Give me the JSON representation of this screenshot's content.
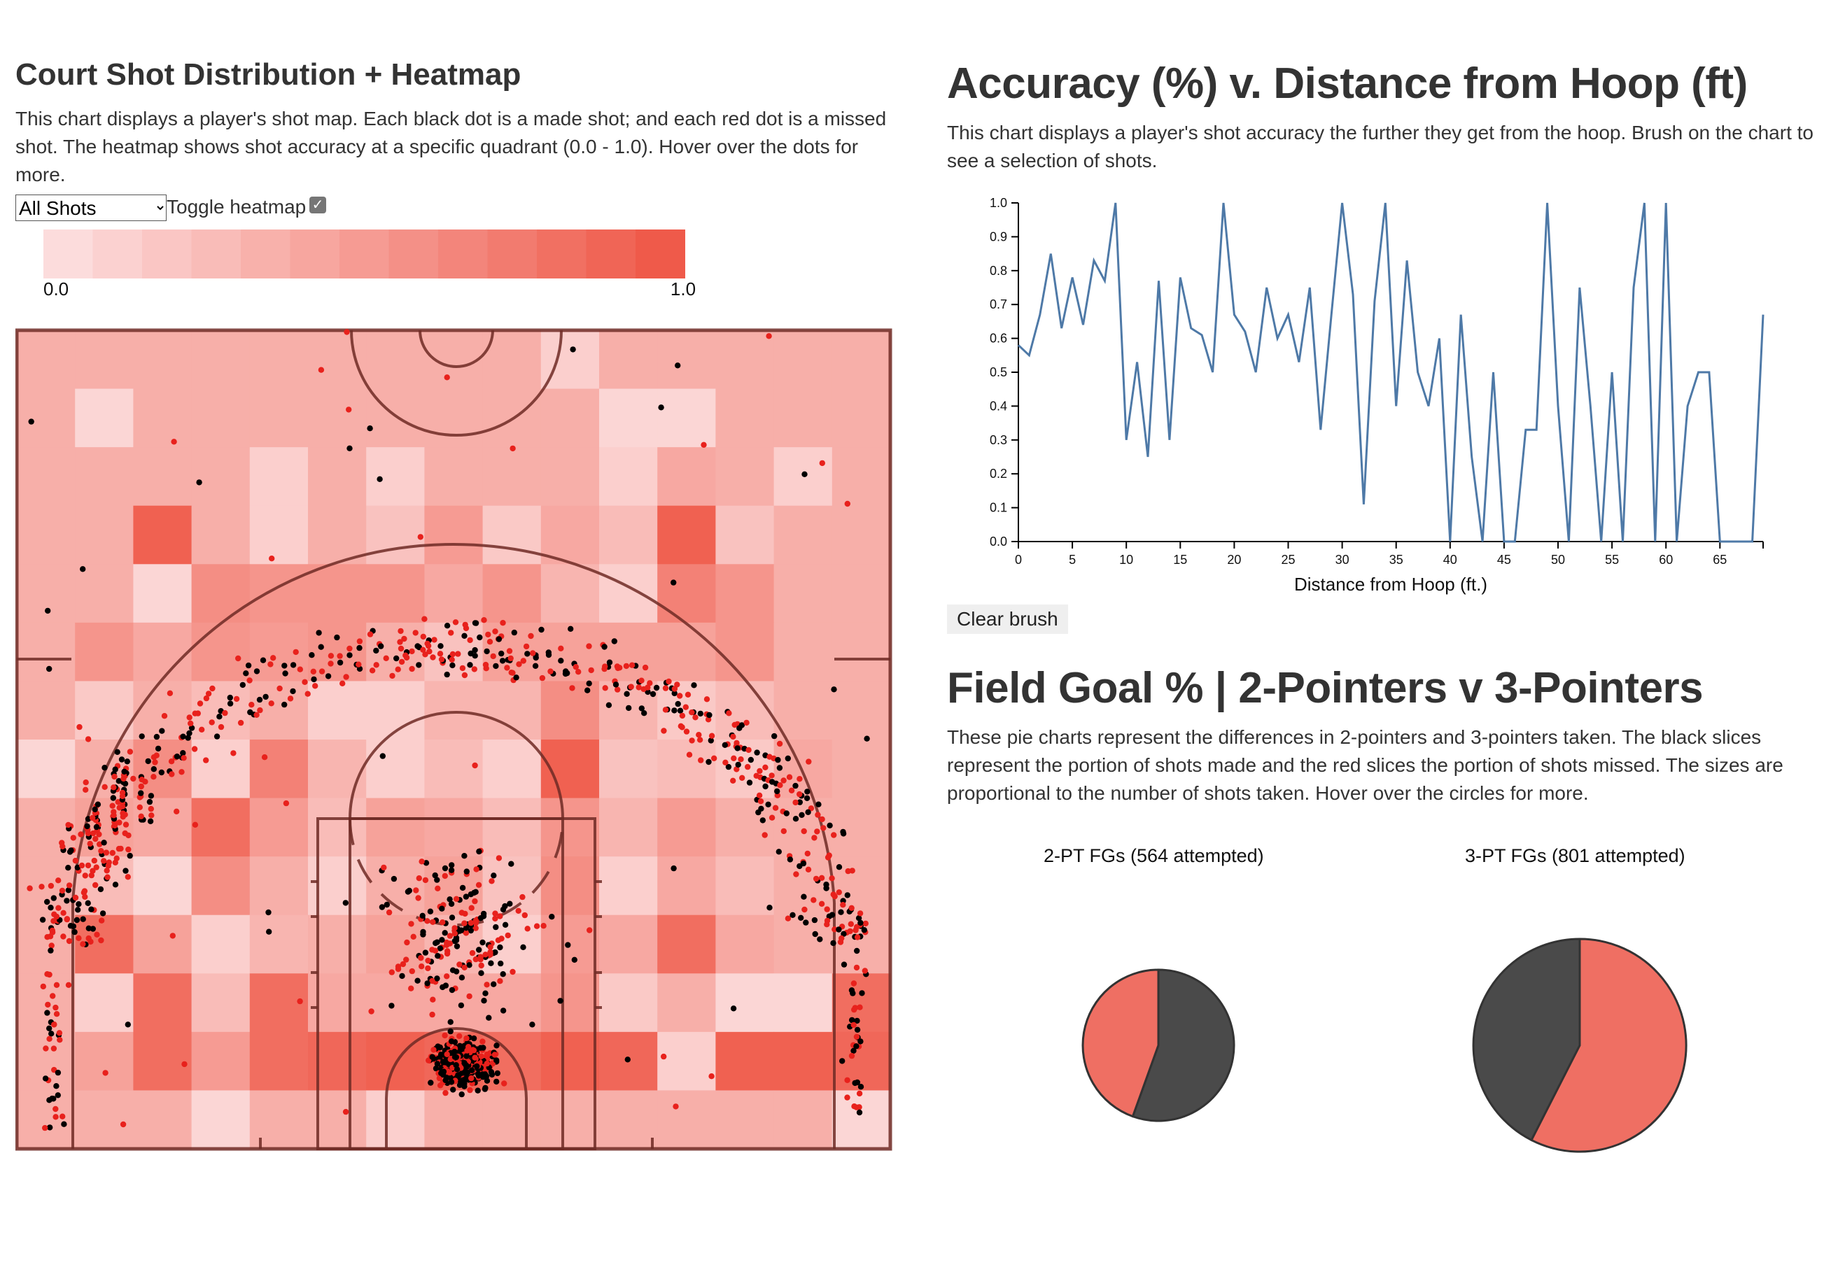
{
  "left": {
    "title": "Court Shot Distribution + Heatmap",
    "description": "This chart displays a player's shot map. Each black dot is a made shot; and each red dot is a missed shot. The heatmap shows shot accuracy at a specific quadrant (0.0 - 1.0). Hover over the dots for more.",
    "filter": {
      "selected": "All Shots",
      "options": [
        "All Shots"
      ]
    },
    "toggle_label": "Toggle heatmap",
    "toggle_checked": true,
    "legend": {
      "min_label": "0.0",
      "max_label": "1.0",
      "color_low": "#fcdcdc",
      "color_high": "#ef5a4a"
    },
    "colors": {
      "made": "#000000",
      "missed": "#e8211c",
      "court_line": "#6e2a24"
    }
  },
  "accuracy": {
    "title": "Accuracy (%) v. Distance from Hoop (ft)",
    "description": "This chart displays a player's shot accuracy the further they get from the hoop. Brush on the chart to see a selection of shots.",
    "clear_label": "Clear brush"
  },
  "fg": {
    "title": "Field Goal % | 2-Pointers v 3-Pointers",
    "description": "These pie charts represent the differences in 2-pointers and 3-pointers taken. The black slices represent the portion of shots made and the red slices the portion of shots missed. The sizes are proportional to the number of shots taken. Hover over the circles for more.",
    "two_title": "2-PT FGs (564 attempted)",
    "three_title": "3-PT FGs (801 attempted)"
  },
  "chart_data": [
    {
      "type": "line",
      "xlabel": "Distance from Hoop (ft.)",
      "ylabel": "",
      "xlim": [
        0,
        69
      ],
      "ylim": [
        0,
        1
      ],
      "x_ticks": [
        "0",
        "5",
        "10",
        "15",
        "20",
        "25",
        "30",
        "35",
        "40",
        "45",
        "50",
        "55",
        "60",
        "65"
      ],
      "y_ticks": [
        "0.0",
        "0.1",
        "0.2",
        "0.3",
        "0.4",
        "0.5",
        "0.6",
        "0.7",
        "0.8",
        "0.9",
        "1.0"
      ],
      "color": "#4e79a7",
      "x": [
        0,
        1,
        2,
        3,
        4,
        5,
        6,
        7,
        8,
        9,
        10,
        11,
        12,
        13,
        14,
        15,
        16,
        17,
        18,
        19,
        20,
        21,
        22,
        23,
        24,
        25,
        26,
        27,
        28,
        29,
        30,
        31,
        32,
        33,
        34,
        35,
        36,
        37,
        38,
        39,
        40,
        41,
        42,
        43,
        44,
        45,
        46,
        47,
        48,
        49,
        50,
        51,
        52,
        53,
        54,
        55,
        56,
        57,
        58,
        59,
        60,
        61,
        62,
        63,
        64,
        65,
        66,
        67,
        68,
        69
      ],
      "y": [
        0.58,
        0.55,
        0.67,
        0.85,
        0.63,
        0.78,
        0.64,
        0.83,
        0.77,
        1.0,
        0.3,
        0.53,
        0.25,
        0.77,
        0.3,
        0.78,
        0.63,
        0.61,
        0.5,
        1.0,
        0.67,
        0.62,
        0.5,
        0.75,
        0.6,
        0.67,
        0.53,
        0.75,
        0.33,
        0.67,
        1.0,
        0.73,
        0.11,
        0.71,
        1.0,
        0.4,
        0.83,
        0.5,
        0.4,
        0.6,
        0.0,
        0.67,
        0.25,
        0.0,
        0.5,
        0.0,
        0.0,
        0.33,
        0.33,
        1.0,
        0.4,
        0.0,
        0.75,
        0.4,
        0.0,
        0.5,
        0.0,
        0.75,
        1.0,
        0.0,
        1.0,
        0.0,
        0.4,
        0.5,
        0.5,
        0.0,
        0.0,
        0.0,
        0.0,
        0.67
      ]
    },
    {
      "type": "pie",
      "title": "2-PT FGs (564 attempted)",
      "categories": [
        "Made",
        "Missed"
      ],
      "values": [
        0.555,
        0.445
      ],
      "colors": [
        "#4a4a4a",
        "#ef6f63"
      ]
    },
    {
      "type": "pie",
      "title": "3-PT FGs (801 attempted)",
      "categories": [
        "Missed",
        "Made"
      ],
      "values": [
        0.575,
        0.425
      ],
      "colors": [
        "#ef6f63",
        "#4a4a4a"
      ]
    },
    {
      "type": "heatmap",
      "title": "",
      "rows": 14,
      "cols": 15,
      "range": [
        0,
        1
      ],
      "values": [
        [
          0.35,
          0.35,
          0.35,
          0.35,
          0.35,
          0.35,
          0.35,
          0.35,
          0.35,
          0.1,
          0.35,
          0.35,
          0.35,
          0.35,
          0.35
        ],
        [
          0.35,
          0.05,
          0.35,
          0.35,
          0.35,
          0.35,
          0.35,
          0.35,
          0.35,
          0.35,
          0.05,
          0.05,
          0.35,
          0.35,
          0.35
        ],
        [
          0.35,
          0.35,
          0.35,
          0.35,
          0.1,
          0.35,
          0.1,
          0.35,
          0.35,
          0.35,
          0.1,
          0.4,
          0.35,
          0.1,
          0.35
        ],
        [
          0.35,
          0.35,
          0.95,
          0.35,
          0.1,
          0.35,
          0.2,
          0.5,
          0.15,
          0.4,
          0.25,
          0.95,
          0.2,
          0.35,
          0.35
        ],
        [
          0.35,
          0.35,
          0.05,
          0.6,
          0.55,
          0.55,
          0.55,
          0.4,
          0.55,
          0.3,
          0.1,
          0.7,
          0.55,
          0.35,
          0.35
        ],
        [
          0.35,
          0.55,
          0.4,
          0.55,
          0.5,
          0.55,
          0.35,
          0.2,
          0.45,
          0.45,
          0.45,
          0.45,
          0.55,
          0.35,
          0.35
        ],
        [
          0.35,
          0.15,
          0.35,
          0.25,
          0.35,
          0.1,
          0.1,
          0.3,
          0.3,
          0.6,
          0.3,
          0.15,
          0.25,
          0.35,
          0.35
        ],
        [
          0.05,
          0.35,
          0.6,
          0.1,
          0.7,
          0.3,
          0.1,
          0.25,
          0.1,
          0.95,
          0.2,
          0.25,
          0.15,
          0.4,
          0.35
        ],
        [
          0.35,
          0.45,
          0.4,
          0.85,
          0.5,
          0.25,
          0.45,
          0.4,
          0.25,
          0.55,
          0.3,
          0.5,
          0.35,
          0.35,
          0.35
        ],
        [
          0.35,
          0.25,
          0.05,
          0.6,
          0.35,
          0.1,
          0.35,
          0.45,
          0.2,
          0.6,
          0.1,
          0.4,
          0.25,
          0.35,
          0.35
        ],
        [
          0.35,
          0.85,
          0.45,
          0.1,
          0.3,
          0.35,
          0.45,
          0.3,
          0.1,
          0.5,
          0.4,
          0.85,
          0.4,
          0.35,
          0.35
        ],
        [
          0.35,
          0.1,
          0.85,
          0.25,
          0.85,
          0.4,
          0.4,
          0.4,
          0.4,
          0.55,
          0.15,
          0.35,
          0.05,
          0.05,
          0.85
        ],
        [
          0.35,
          0.45,
          0.85,
          0.5,
          0.85,
          0.9,
          0.95,
          0.9,
          0.85,
          0.95,
          0.9,
          0.1,
          0.95,
          0.95,
          0.9
        ],
        [
          0.35,
          0.35,
          0.35,
          0.05,
          0.35,
          0.35,
          0.1,
          0.35,
          0.35,
          0.35,
          0.35,
          0.35,
          0.35,
          0.35,
          0.05
        ]
      ]
    }
  ]
}
